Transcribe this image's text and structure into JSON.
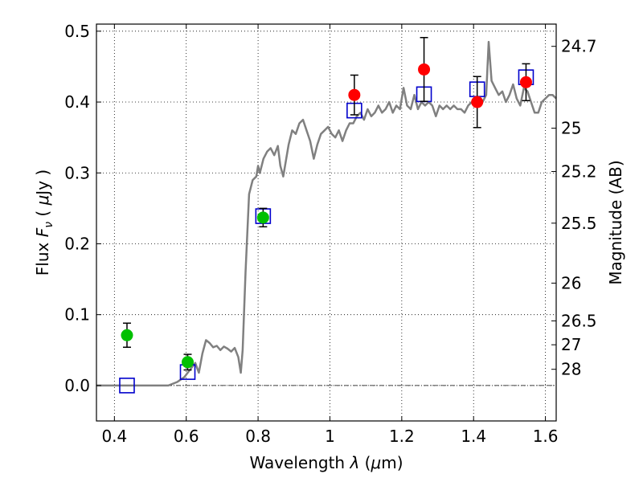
{
  "chart_data": {
    "type": "scatter",
    "title": "",
    "xlabel": "Wavelength  λ (μm)",
    "ylabel": "Flux  F_ν  ( μJy )",
    "ylabel_parts": {
      "a": "Flux  ",
      "b": "F",
      "c": "ν",
      "d": "  ( ",
      "e": "μ",
      "f": "Jy )"
    },
    "xlabel_parts": {
      "a": "Wavelength  ",
      "b": "λ",
      "c": " (",
      "d": "μ",
      "e": "m)"
    },
    "y2label": "Magnitude (AB)",
    "xlim": [
      0.35,
      1.63
    ],
    "ylim": [
      -0.05,
      0.51
    ],
    "grid": true,
    "x_ticks": [
      {
        "v": 0.4,
        "label": "0.4"
      },
      {
        "v": 0.6,
        "label": "0.6"
      },
      {
        "v": 0.8,
        "label": "0.8"
      },
      {
        "v": 1.0,
        "label": "1"
      },
      {
        "v": 1.2,
        "label": "1.2"
      },
      {
        "v": 1.4,
        "label": "1.4"
      },
      {
        "v": 1.6,
        "label": "1.6"
      }
    ],
    "y_ticks": [
      {
        "v": 0.0,
        "label": "0.0"
      },
      {
        "v": 0.1,
        "label": "0.1"
      },
      {
        "v": 0.2,
        "label": "0.2"
      },
      {
        "v": 0.3,
        "label": "0.3"
      },
      {
        "v": 0.4,
        "label": "0.4"
      },
      {
        "v": 0.5,
        "label": "0.5"
      }
    ],
    "mag_ticks": [
      {
        "flux": 0.4786,
        "label": "24.7"
      },
      {
        "flux": 0.3631,
        "label": "25"
      },
      {
        "flux": 0.302,
        "label": "25.2"
      },
      {
        "flux": 0.2291,
        "label": "25.5"
      },
      {
        "flux": 0.1445,
        "label": "26"
      },
      {
        "flux": 0.0912,
        "label": "26.5"
      },
      {
        "flux": 0.0575,
        "label": "27"
      },
      {
        "flux": 0.0229,
        "label": "28"
      }
    ],
    "model_spectrum": {
      "color": "#808080",
      "x": [
        0.35,
        0.55,
        0.575,
        0.595,
        0.61,
        0.625,
        0.635,
        0.645,
        0.655,
        0.665,
        0.675,
        0.685,
        0.695,
        0.705,
        0.715,
        0.725,
        0.735,
        0.745,
        0.748,
        0.752,
        0.757,
        0.765,
        0.775,
        0.785,
        0.795,
        0.8,
        0.805,
        0.815,
        0.825,
        0.835,
        0.845,
        0.855,
        0.862,
        0.87,
        0.885,
        0.895,
        0.905,
        0.915,
        0.925,
        0.935,
        0.945,
        0.955,
        0.965,
        0.975,
        0.985,
        0.995,
        1.005,
        1.015,
        1.025,
        1.035,
        1.045,
        1.055,
        1.065,
        1.075,
        1.085,
        1.095,
        1.105,
        1.115,
        1.125,
        1.135,
        1.145,
        1.155,
        1.165,
        1.175,
        1.185,
        1.195,
        1.205,
        1.215,
        1.225,
        1.235,
        1.245,
        1.255,
        1.265,
        1.275,
        1.285,
        1.295,
        1.305,
        1.315,
        1.325,
        1.335,
        1.345,
        1.355,
        1.365,
        1.375,
        1.385,
        1.395,
        1.405,
        1.415,
        1.425,
        1.435,
        1.442,
        1.45,
        1.46,
        1.47,
        1.48,
        1.49,
        1.5,
        1.51,
        1.52,
        1.53,
        1.54,
        1.55,
        1.56,
        1.57,
        1.58,
        1.59,
        1.6,
        1.61,
        1.62,
        1.63
      ],
      "y": [
        0.0,
        0.0,
        0.005,
        0.012,
        0.022,
        0.032,
        0.018,
        0.045,
        0.064,
        0.06,
        0.054,
        0.056,
        0.05,
        0.055,
        0.052,
        0.048,
        0.053,
        0.04,
        0.03,
        0.018,
        0.05,
        0.16,
        0.27,
        0.29,
        0.295,
        0.31,
        0.3,
        0.32,
        0.33,
        0.335,
        0.325,
        0.338,
        0.31,
        0.295,
        0.34,
        0.36,
        0.355,
        0.37,
        0.375,
        0.36,
        0.345,
        0.32,
        0.34,
        0.355,
        0.36,
        0.365,
        0.355,
        0.35,
        0.36,
        0.345,
        0.36,
        0.37,
        0.37,
        0.38,
        0.385,
        0.375,
        0.39,
        0.38,
        0.385,
        0.395,
        0.385,
        0.39,
        0.4,
        0.385,
        0.395,
        0.39,
        0.42,
        0.395,
        0.39,
        0.41,
        0.39,
        0.4,
        0.395,
        0.4,
        0.395,
        0.38,
        0.395,
        0.39,
        0.395,
        0.39,
        0.395,
        0.39,
        0.39,
        0.385,
        0.395,
        0.4,
        0.405,
        0.395,
        0.4,
        0.41,
        0.485,
        0.43,
        0.42,
        0.41,
        0.415,
        0.4,
        0.41,
        0.425,
        0.405,
        0.395,
        0.42,
        0.415,
        0.4,
        0.385,
        0.385,
        0.4,
        0.405,
        0.41,
        0.41,
        0.405
      ]
    },
    "series": [
      {
        "marker": "circle",
        "color": "#00c000",
        "x": [
          0.435,
          0.604,
          0.814
        ],
        "y": [
          0.071,
          0.033,
          0.237
        ],
        "err": [
          0.017,
          0.011,
          0.013
        ]
      },
      {
        "marker": "circle",
        "color": "#ff0000",
        "x": [
          1.068,
          1.262,
          1.41,
          1.546
        ],
        "y": [
          0.41,
          0.446,
          0.4,
          0.428
        ],
        "err": [
          0.028,
          0.045,
          0.036,
          0.026
        ]
      },
      {
        "marker": "square",
        "color": "#0000cc",
        "x": [
          0.435,
          0.604,
          0.814,
          1.068,
          1.262,
          1.41,
          1.546
        ],
        "y": [
          0.0,
          0.019,
          0.239,
          0.388,
          0.411,
          0.418,
          0.435
        ]
      }
    ]
  }
}
